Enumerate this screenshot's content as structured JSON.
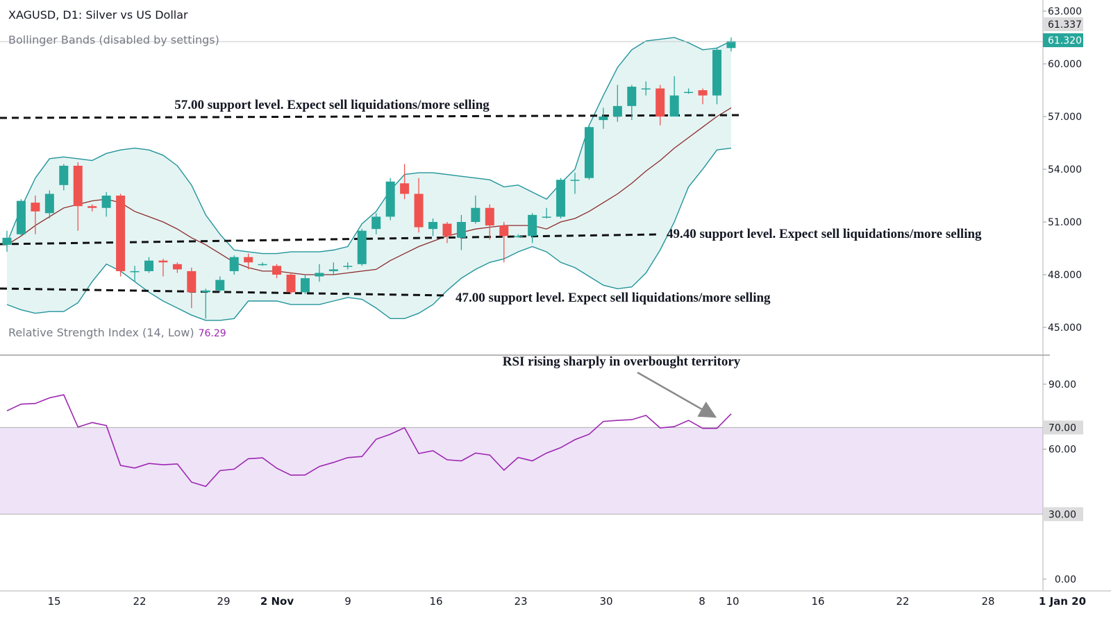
{
  "title": "XAGUSD, D1: Silver vs US Dollar",
  "indicators": {
    "bollinger_label": "Bollinger Bands (disabled by settings)",
    "rsi_label": "Relative Strength Index (14, Low)",
    "rsi_value": "76.29"
  },
  "colors": {
    "up": "#26a69a",
    "down": "#ef5350",
    "band": "#22949a",
    "band_fill": "#e4f4f3",
    "mid": "#8b2c2c",
    "rsi": "#9c27b0",
    "rsi_zone": "#efe3f8"
  },
  "chart_data": [
    {
      "type": "candlestick",
      "ylim": [
        45,
        63
      ],
      "price_ticks": [
        "63.000",
        "60.000",
        "57.000",
        "54.000",
        "51.000",
        "48.000",
        "45.000"
      ],
      "price_markers": [
        {
          "label": "61.337",
          "value": 61.337,
          "style": "gray"
        },
        {
          "label": "61.320",
          "value": 61.32,
          "style": "green"
        }
      ],
      "x_axis_labels": [
        "15",
        "22",
        "29",
        "2 Nov",
        "9",
        "16",
        "23",
        "30",
        "8",
        "10",
        "16",
        "22",
        "28",
        "1 Jan 20"
      ],
      "candles": [
        {
          "o": 49.7,
          "c": 50.1,
          "h": 50.5,
          "l": 49.3
        },
        {
          "o": 50.3,
          "c": 52.2,
          "h": 52.3,
          "l": 50.2
        },
        {
          "o": 52.1,
          "c": 51.6,
          "h": 52.5,
          "l": 50.3
        },
        {
          "o": 51.5,
          "c": 52.6,
          "h": 52.8,
          "l": 51.2
        },
        {
          "o": 53.1,
          "c": 54.2,
          "h": 54.3,
          "l": 52.8
        },
        {
          "o": 54.2,
          "c": 51.9,
          "h": 54.4,
          "l": 50.5
        },
        {
          "o": 51.9,
          "c": 51.8,
          "h": 52.0,
          "l": 51.6
        },
        {
          "o": 51.8,
          "c": 52.5,
          "h": 52.7,
          "l": 51.3
        },
        {
          "o": 52.5,
          "c": 48.2,
          "h": 52.6,
          "l": 47.9
        },
        {
          "o": 48.2,
          "c": 48.2,
          "h": 48.5,
          "l": 47.6
        },
        {
          "o": 48.2,
          "c": 48.8,
          "h": 49.0,
          "l": 48.1
        },
        {
          "o": 48.8,
          "c": 48.7,
          "h": 48.9,
          "l": 47.9
        },
        {
          "o": 48.6,
          "c": 48.3,
          "h": 48.7,
          "l": 48.1
        },
        {
          "o": 48.2,
          "c": 47.0,
          "h": 48.4,
          "l": 46.1
        },
        {
          "o": 47.0,
          "c": 47.1,
          "h": 47.2,
          "l": 45.5
        },
        {
          "o": 47.1,
          "c": 47.7,
          "h": 47.9,
          "l": 47.0
        },
        {
          "o": 48.2,
          "c": 49.0,
          "h": 49.1,
          "l": 48.0
        },
        {
          "o": 49.0,
          "c": 48.7,
          "h": 49.2,
          "l": 48.3
        },
        {
          "o": 48.6,
          "c": 48.6,
          "h": 48.7,
          "l": 48.5
        },
        {
          "o": 48.5,
          "c": 48.0,
          "h": 48.6,
          "l": 47.8
        },
        {
          "o": 48.0,
          "c": 47.0,
          "h": 48.1,
          "l": 46.9
        },
        {
          "o": 47.0,
          "c": 47.8,
          "h": 48.0,
          "l": 46.9
        },
        {
          "o": 47.9,
          "c": 48.1,
          "h": 48.6,
          "l": 47.6
        },
        {
          "o": 48.2,
          "c": 48.3,
          "h": 48.7,
          "l": 48.0
        },
        {
          "o": 48.5,
          "c": 48.5,
          "h": 48.7,
          "l": 48.3
        },
        {
          "o": 48.6,
          "c": 50.5,
          "h": 50.6,
          "l": 48.5
        },
        {
          "o": 50.6,
          "c": 51.3,
          "h": 51.5,
          "l": 50.3
        },
        {
          "o": 51.3,
          "c": 53.3,
          "h": 53.5,
          "l": 51.1
        },
        {
          "o": 53.2,
          "c": 52.6,
          "h": 54.3,
          "l": 52.3
        },
        {
          "o": 52.6,
          "c": 50.7,
          "h": 53.5,
          "l": 50.4
        },
        {
          "o": 50.6,
          "c": 51.0,
          "h": 51.2,
          "l": 50.2
        },
        {
          "o": 50.9,
          "c": 50.2,
          "h": 51.0,
          "l": 49.8
        },
        {
          "o": 50.1,
          "c": 51.0,
          "h": 51.4,
          "l": 49.4
        },
        {
          "o": 51.0,
          "c": 51.8,
          "h": 52.5,
          "l": 50.9
        },
        {
          "o": 51.8,
          "c": 50.8,
          "h": 52.0,
          "l": 50.0
        },
        {
          "o": 50.8,
          "c": 50.2,
          "h": 51.0,
          "l": 48.7
        },
        {
          "o": 50.2,
          "c": 50.2,
          "h": 50.3,
          "l": 50.1
        },
        {
          "o": 50.2,
          "c": 51.4,
          "h": 51.5,
          "l": 49.8
        },
        {
          "o": 51.3,
          "c": 51.3,
          "h": 51.8,
          "l": 51.2
        },
        {
          "o": 51.3,
          "c": 53.4,
          "h": 53.5,
          "l": 51.2
        },
        {
          "o": 53.4,
          "c": 53.4,
          "h": 53.8,
          "l": 52.6
        },
        {
          "o": 53.5,
          "c": 56.4,
          "h": 56.5,
          "l": 53.4
        },
        {
          "o": 56.8,
          "c": 57.0,
          "h": 57.5,
          "l": 56.3
        },
        {
          "o": 57.0,
          "c": 57.6,
          "h": 58.8,
          "l": 56.7
        },
        {
          "o": 57.6,
          "c": 58.7,
          "h": 58.8,
          "l": 56.8
        },
        {
          "o": 58.6,
          "c": 58.6,
          "h": 59.0,
          "l": 58.2
        },
        {
          "o": 58.6,
          "c": 57.0,
          "h": 58.8,
          "l": 56.5
        },
        {
          "o": 57.0,
          "c": 58.2,
          "h": 59.3,
          "l": 57.0
        },
        {
          "o": 58.4,
          "c": 58.4,
          "h": 58.6,
          "l": 58.3
        },
        {
          "o": 58.5,
          "c": 58.2,
          "h": 58.6,
          "l": 57.7
        },
        {
          "o": 58.2,
          "c": 60.8,
          "h": 60.9,
          "l": 57.7
        },
        {
          "o": 60.9,
          "c": 61.3,
          "h": 61.5,
          "l": 60.7
        }
      ],
      "bollinger_upper": [
        49.8,
        51.8,
        53.5,
        54.6,
        54.7,
        54.6,
        54.5,
        54.9,
        55.1,
        55.2,
        55.1,
        54.8,
        54.2,
        53.1,
        51.4,
        50.3,
        49.4,
        49.3,
        49.2,
        49.2,
        49.3,
        49.3,
        49.3,
        49.4,
        49.6,
        50.9,
        51.6,
        52.8,
        53.7,
        53.8,
        53.8,
        53.7,
        53.6,
        53.5,
        53.4,
        53.0,
        53.1,
        52.7,
        52.3,
        53.2,
        54.0,
        56.5,
        58.2,
        59.8,
        60.8,
        61.3,
        61.4,
        61.5,
        61.2,
        60.8,
        60.9,
        61.3
      ],
      "bollinger_mid": [
        49.7,
        50.2,
        50.8,
        51.3,
        51.8,
        52.0,
        52.2,
        52.3,
        52.1,
        51.6,
        51.3,
        51.0,
        50.6,
        50.1,
        49.7,
        49.2,
        48.7,
        48.4,
        48.2,
        48.2,
        48.1,
        48.0,
        48.0,
        48.0,
        48.1,
        48.2,
        48.3,
        48.8,
        49.2,
        49.6,
        49.9,
        50.2,
        50.4,
        50.6,
        50.7,
        50.8,
        50.8,
        50.8,
        50.6,
        51.0,
        51.2,
        51.6,
        52.1,
        52.6,
        53.2,
        53.9,
        54.5,
        55.2,
        55.8,
        56.4,
        57.0,
        57.5
      ],
      "bollinger_lower": [
        46.3,
        46.0,
        45.8,
        45.9,
        45.9,
        46.4,
        47.6,
        48.6,
        48.2,
        47.6,
        47.0,
        46.5,
        46.1,
        45.7,
        45.4,
        45.4,
        45.5,
        46.5,
        46.5,
        46.5,
        46.3,
        46.3,
        46.3,
        46.5,
        46.7,
        46.6,
        46.1,
        45.5,
        45.5,
        45.8,
        46.3,
        47.1,
        47.8,
        48.3,
        48.7,
        48.9,
        49.3,
        49.6,
        49.3,
        48.7,
        48.4,
        47.9,
        47.4,
        47.2,
        47.3,
        48.1,
        49.4,
        51.0,
        53.0,
        54.0,
        55.1,
        55.2
      ],
      "annotations": [
        {
          "text": "57.00 support level. Expect sell liquidations/more selling",
          "level": 57.0
        },
        {
          "text": "49.40 support level. Expect sell liquidations/more selling",
          "level": 49.4
        },
        {
          "text": "47.00 support level. Expect sell liquidations/more selling",
          "level": 47.0
        }
      ]
    },
    {
      "type": "line",
      "name": "RSI",
      "ylim": [
        0,
        100
      ],
      "ticks": [
        "90.00",
        "60.00",
        "0.00"
      ],
      "bands": [
        {
          "label": "70.00",
          "value": 70
        },
        {
          "label": "30.00",
          "value": 30
        }
      ],
      "values": [
        77.7,
        80.8,
        81.1,
        83.7,
        85.1,
        70.2,
        72.3,
        70.9,
        52.5,
        51.3,
        53.4,
        52.8,
        53.2,
        44.8,
        42.8,
        50.1,
        50.8,
        55.6,
        56.0,
        51.2,
        48.0,
        48.1,
        52.0,
        53.9,
        56.1,
        56.6,
        64.6,
        66.9,
        69.9,
        58.0,
        59.3,
        55.1,
        54.6,
        58.2,
        57.3,
        50.3,
        56.2,
        54.6,
        58.2,
        60.7,
        64.4,
        66.9,
        72.8,
        73.3,
        73.6,
        75.6,
        69.8,
        70.4,
        73.3,
        69.6,
        69.6,
        76.3
      ],
      "annotation": "RSI rising sharply in overbought territory"
    }
  ]
}
